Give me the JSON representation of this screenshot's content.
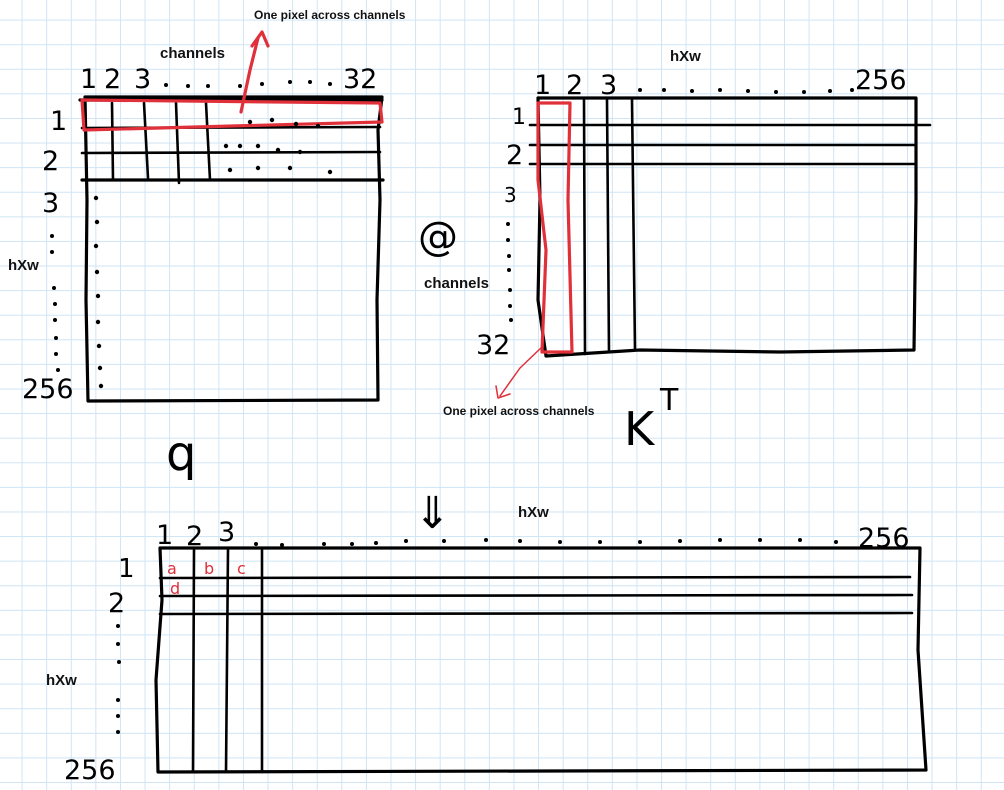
{
  "q": {
    "letter": "q",
    "top_label": "channels",
    "col_indices": [
      "1",
      "2",
      "3",
      "32"
    ],
    "side_label": "hXw",
    "row_indices": [
      "1",
      "2",
      "3",
      "256"
    ],
    "annotation": "One pixel across channels"
  },
  "operator": "@",
  "kt": {
    "letter": "K",
    "superscript": "T",
    "top_label": "hXw",
    "col_indices": [
      "1",
      "2",
      "3",
      "256"
    ],
    "side_label": "channels",
    "row_indices": [
      "1",
      "2",
      "3",
      "32"
    ],
    "annotation": "One pixel across channels"
  },
  "equals_symbol": "⇓",
  "result": {
    "top_label": "hXw",
    "col_indices": [
      "1",
      "2",
      "3",
      "256"
    ],
    "side_label": "hXw",
    "row_indices": [
      "1",
      "2",
      "256"
    ],
    "cells": [
      "a",
      "b",
      "c",
      "d"
    ]
  },
  "colors": {
    "ink": "#000000",
    "highlight": "#e0303a",
    "grid": "#cfe4f5"
  }
}
